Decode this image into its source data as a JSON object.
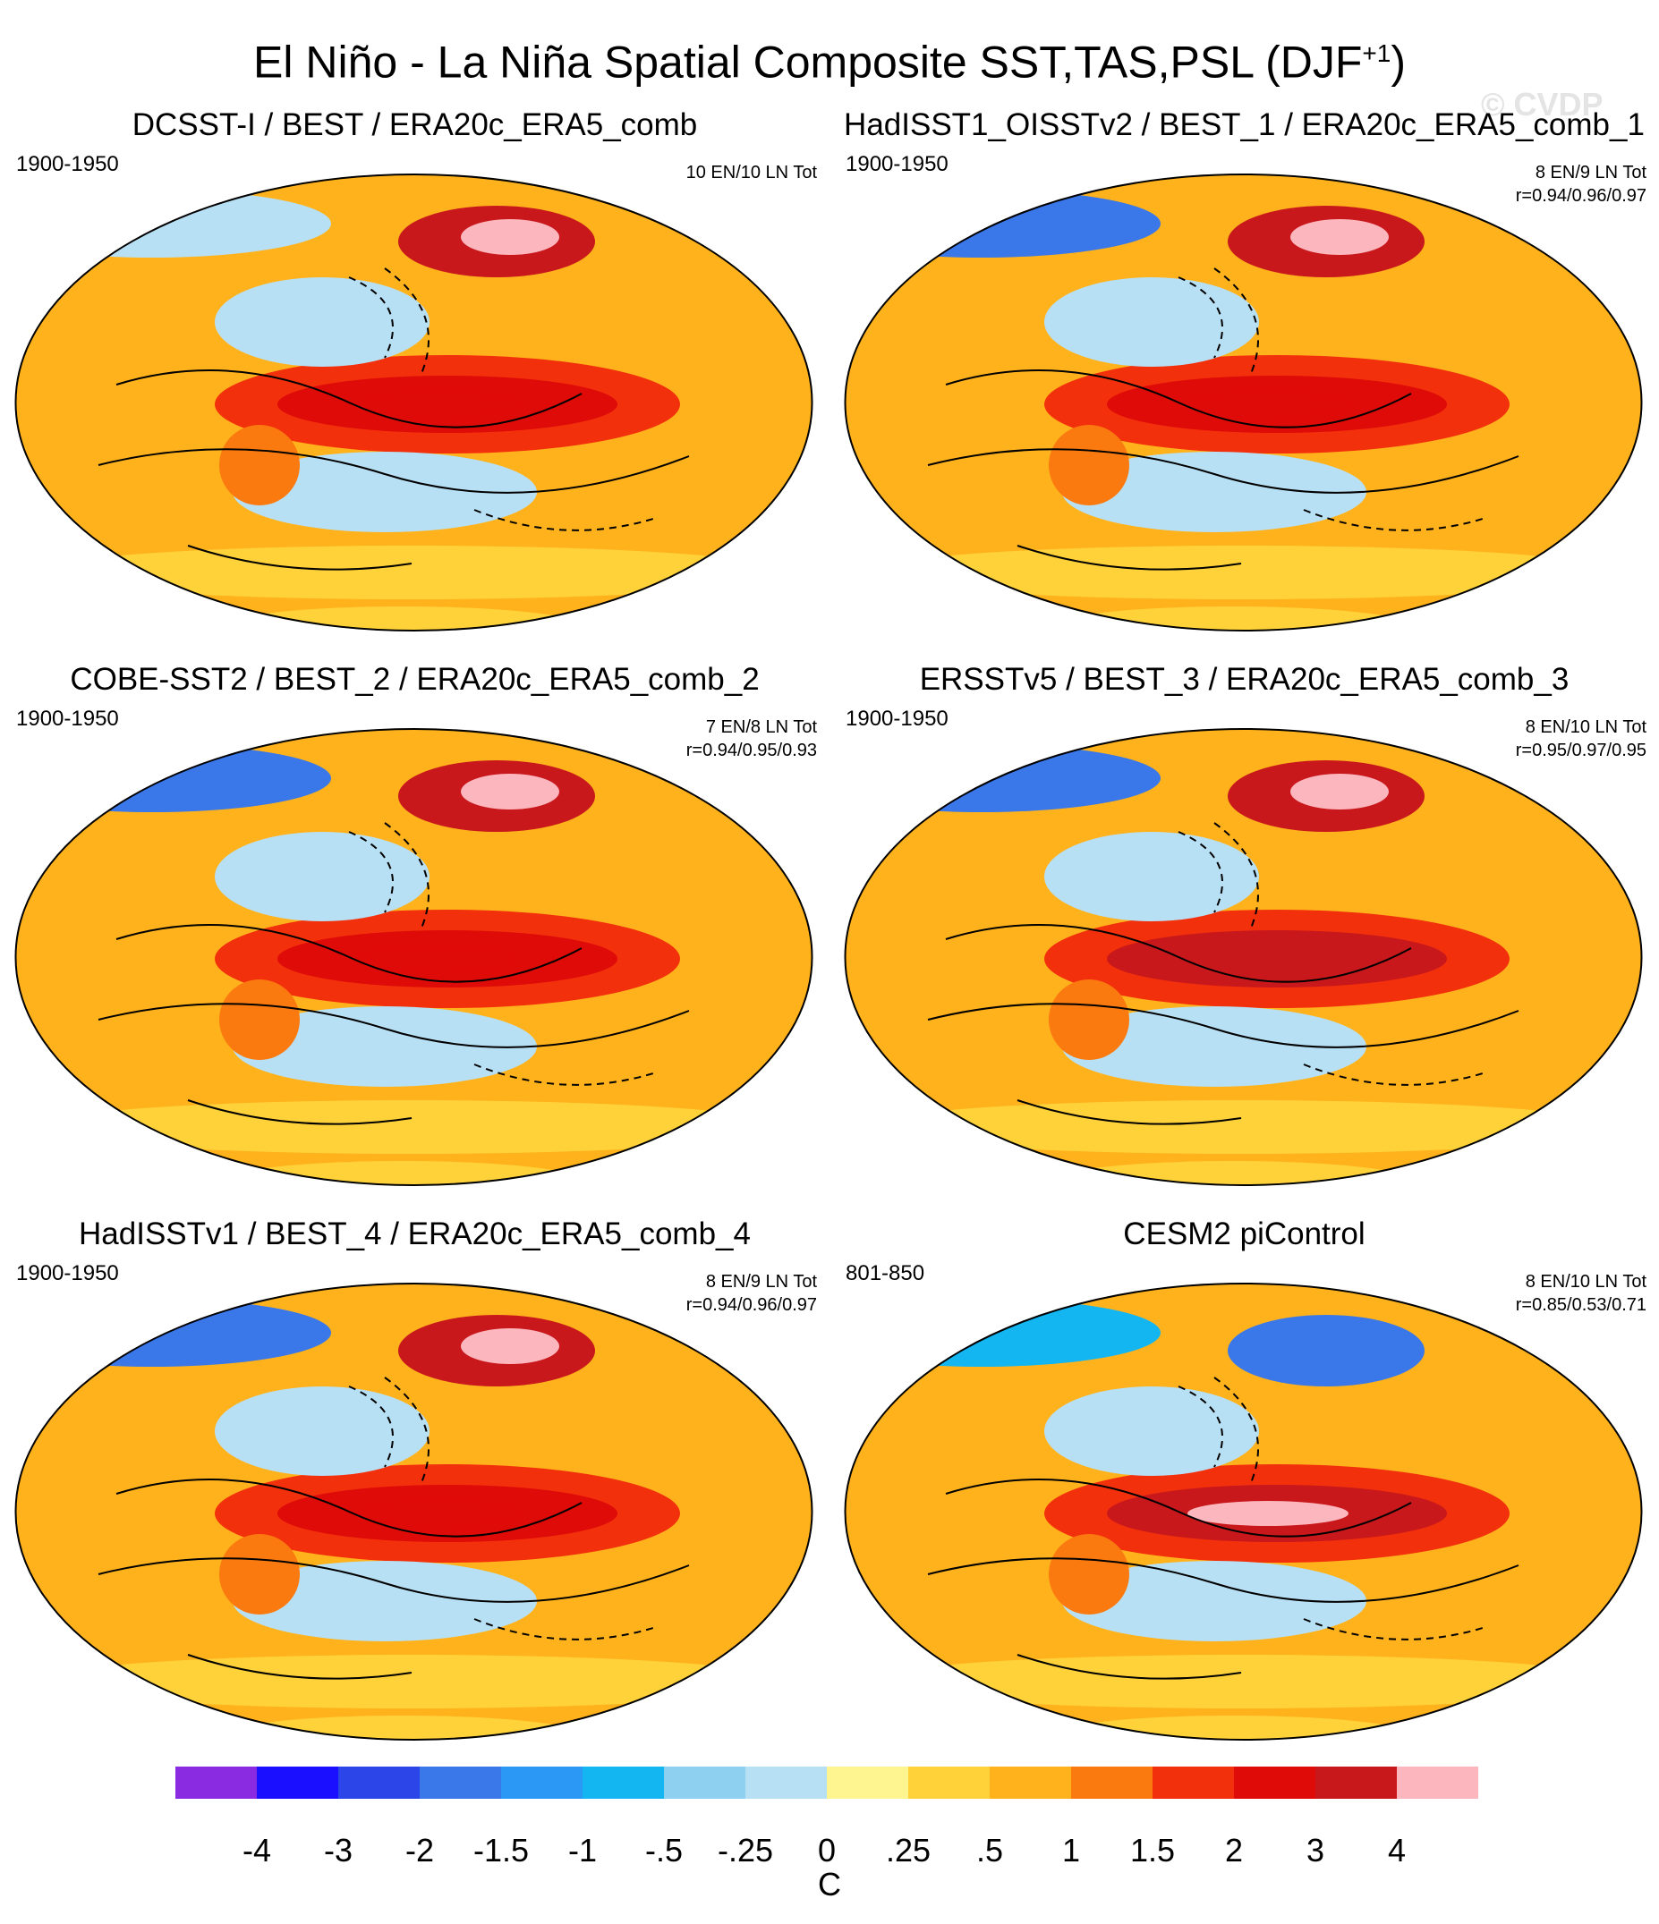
{
  "title_main": "El Niño - La Niña Spatial Composite SST,TAS,PSL (DJF",
  "title_sup": "+1",
  "title_close": ")",
  "watermark": "© CVDP",
  "chart_data": {
    "type": "heatmap",
    "colorbar": {
      "units": "C",
      "levels": [
        "-4",
        "-3",
        "-2",
        "-1.5",
        "-1",
        "-.5",
        "-.25",
        "0",
        ".25",
        ".5",
        "1",
        "1.5",
        "2",
        "3",
        "4"
      ],
      "colors": [
        "#8a2be2",
        "#1a0fff",
        "#2b45e8",
        "#3a78ea",
        "#2a98f4",
        "#14b6f2",
        "#8ed0f0",
        "#b8e0f4",
        "#fff590",
        "#ffd23a",
        "#ffb21c",
        "#fb7a10",
        "#f3300c",
        "#df0b08",
        "#c8181c",
        "#fbb7bd"
      ]
    },
    "panels": [
      {
        "title": "DCSST-I / BEST / ERA20c_ERA5_comb",
        "period": "1900-1950",
        "events": "10 EN/10 LN Tot",
        "corr": "",
        "enso_peak": 2,
        "arctic_north_america": 3,
        "eurasia": -0.25
      },
      {
        "title": "HadISST1_OISSTv2 / BEST_1 / ERA20c_ERA5_comb_1",
        "period": "1900-1950",
        "events": "8 EN/9 LN Tot",
        "corr": "r=0.94/0.96/0.97",
        "enso_peak": 2,
        "arctic_north_america": 3,
        "eurasia": -2
      },
      {
        "title": "COBE-SST2 / BEST_2 / ERA20c_ERA5_comb_2",
        "period": "1900-1950",
        "events": "7 EN/8 LN Tot",
        "corr": "r=0.94/0.95/0.93",
        "enso_peak": 2,
        "arctic_north_america": 3,
        "eurasia": -2
      },
      {
        "title": "ERSSTv5 / BEST_3 / ERA20c_ERA5_comb_3",
        "period": "1900-1950",
        "events": "8 EN/10 LN Tot",
        "corr": "r=0.95/0.97/0.95",
        "enso_peak": 3,
        "arctic_north_america": 3,
        "eurasia": -2
      },
      {
        "title": "HadISSTv1 / BEST_4 / ERA20c_ERA5_comb_4",
        "period": "1900-1950",
        "events": "8 EN/9 LN Tot",
        "corr": "r=0.94/0.96/0.97",
        "enso_peak": 2,
        "arctic_north_america": 3,
        "eurasia": -2
      },
      {
        "title": "CESM2 piControl",
        "period": "801-850",
        "events": "8 EN/10 LN Tot",
        "corr": "r=0.85/0.53/0.71",
        "enso_peak": 4,
        "arctic_north_america": -2,
        "eurasia": -1
      }
    ]
  }
}
